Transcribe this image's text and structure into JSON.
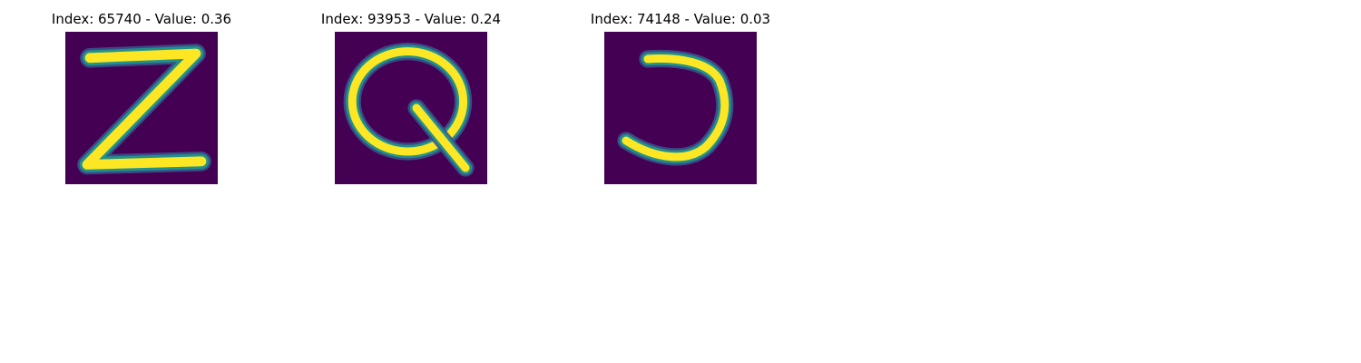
{
  "panels": [
    {
      "title": "Index: 65740 - Value: 0.36",
      "index": 65740,
      "value": 0.36,
      "glyph": "Z"
    },
    {
      "title": "Index: 93953 - Value: 0.24",
      "index": 93953,
      "value": 0.24,
      "glyph": "Q"
    },
    {
      "title": "Index: 74148 - Value: 0.03",
      "index": 74148,
      "value": 0.03,
      "glyph": "J"
    }
  ],
  "colors": {
    "background": "#440154",
    "stroke_core": "#fde725",
    "stroke_edge": "#21918c",
    "stroke_halo": "#3b528b"
  }
}
